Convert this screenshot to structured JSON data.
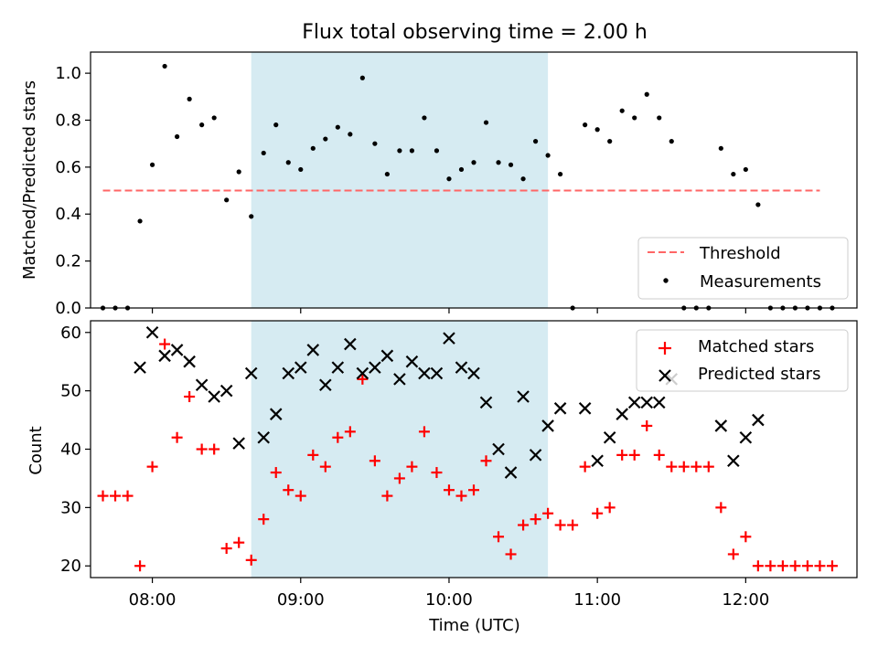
{
  "chart_data": [
    {
      "type": "scatter",
      "title": "Flux total observing time = 2.00 h",
      "ylabel": "Matched/Predicted stars",
      "xlabel": "",
      "xlim": [
        "07:35",
        "12:45"
      ],
      "ylim": [
        0,
        1.09
      ],
      "yticks": [
        0.0,
        0.2,
        0.4,
        0.6,
        0.8,
        1.0
      ],
      "ytick_labels": [
        "0.0",
        "0.2",
        "0.4",
        "0.6",
        "0.8",
        "1.0"
      ],
      "x_tick_labels_shown": false,
      "shaded_interval": {
        "start": "08:40",
        "end": "10:40",
        "color": "#add8e6"
      },
      "threshold": {
        "name": "Threshold",
        "value": 0.5,
        "x_start": "07:40",
        "x_end": "12:30",
        "color": "#ff6666",
        "style": "dashed"
      },
      "series": [
        {
          "name": "Measurements",
          "color": "#000000",
          "marker": "dot",
          "points": [
            [
              "07:40",
              0.0
            ],
            [
              "07:45",
              0.0
            ],
            [
              "07:50",
              0.0
            ],
            [
              "07:55",
              0.37
            ],
            [
              "08:00",
              0.61
            ],
            [
              "08:05",
              1.03
            ],
            [
              "08:10",
              0.73
            ],
            [
              "08:15",
              0.89
            ],
            [
              "08:20",
              0.78
            ],
            [
              "08:25",
              0.81
            ],
            [
              "08:30",
              0.46
            ],
            [
              "08:35",
              0.58
            ],
            [
              "08:40",
              0.39
            ],
            [
              "08:45",
              0.66
            ],
            [
              "08:50",
              0.78
            ],
            [
              "08:55",
              0.62
            ],
            [
              "09:00",
              0.59
            ],
            [
              "09:05",
              0.68
            ],
            [
              "09:10",
              0.72
            ],
            [
              "09:15",
              0.77
            ],
            [
              "09:20",
              0.74
            ],
            [
              "09:25",
              0.98
            ],
            [
              "09:30",
              0.7
            ],
            [
              "09:35",
              0.57
            ],
            [
              "09:40",
              0.67
            ],
            [
              "09:45",
              0.67
            ],
            [
              "09:50",
              0.81
            ],
            [
              "09:55",
              0.67
            ],
            [
              "10:00",
              0.55
            ],
            [
              "10:05",
              0.59
            ],
            [
              "10:10",
              0.62
            ],
            [
              "10:15",
              0.79
            ],
            [
              "10:20",
              0.62
            ],
            [
              "10:25",
              0.61
            ],
            [
              "10:30",
              0.55
            ],
            [
              "10:35",
              0.71
            ],
            [
              "10:40",
              0.65
            ],
            [
              "10:45",
              0.57
            ],
            [
              "10:50",
              0.0
            ],
            [
              "10:55",
              0.78
            ],
            [
              "11:00",
              0.76
            ],
            [
              "11:05",
              0.71
            ],
            [
              "11:10",
              0.84
            ],
            [
              "11:15",
              0.81
            ],
            [
              "11:20",
              0.91
            ],
            [
              "11:25",
              0.81
            ],
            [
              "11:30",
              0.71
            ],
            [
              "11:35",
              0.0
            ],
            [
              "11:40",
              0.0
            ],
            [
              "11:45",
              0.0
            ],
            [
              "11:50",
              0.68
            ],
            [
              "11:55",
              0.57
            ],
            [
              "12:00",
              0.59
            ],
            [
              "12:05",
              0.44
            ],
            [
              "12:10",
              0.0
            ],
            [
              "12:15",
              0.0
            ],
            [
              "12:20",
              0.0
            ],
            [
              "12:25",
              0.0
            ],
            [
              "12:30",
              0.0
            ],
            [
              "12:35",
              0.0
            ]
          ]
        }
      ],
      "legend": {
        "placement": "lower-right",
        "entries": [
          "Threshold",
          "Measurements"
        ]
      },
      "grid": false
    },
    {
      "type": "scatter",
      "title": "",
      "ylabel": "Count",
      "xlabel": "Time (UTC)",
      "xlim": [
        "07:35",
        "12:45"
      ],
      "ylim": [
        18,
        62
      ],
      "yticks": [
        20,
        30,
        40,
        50,
        60
      ],
      "ytick_labels": [
        "20",
        "30",
        "40",
        "50",
        "60"
      ],
      "xticks": [
        "08:00",
        "09:00",
        "10:00",
        "11:00",
        "12:00"
      ],
      "xtick_labels": [
        "08:00",
        "09:00",
        "10:00",
        "11:00",
        "12:00"
      ],
      "shaded_interval": {
        "start": "08:40",
        "end": "10:40",
        "color": "#add8e6"
      },
      "series": [
        {
          "name": "Matched stars",
          "color": "#ff0000",
          "marker": "plus",
          "points": [
            [
              "07:40",
              32
            ],
            [
              "07:45",
              32
            ],
            [
              "07:50",
              32
            ],
            [
              "07:55",
              20
            ],
            [
              "08:00",
              37
            ],
            [
              "08:05",
              58
            ],
            [
              "08:10",
              42
            ],
            [
              "08:15",
              49
            ],
            [
              "08:20",
              40
            ],
            [
              "08:25",
              40
            ],
            [
              "08:30",
              23
            ],
            [
              "08:35",
              24
            ],
            [
              "08:40",
              21
            ],
            [
              "08:45",
              28
            ],
            [
              "08:50",
              36
            ],
            [
              "08:55",
              33
            ],
            [
              "09:00",
              32
            ],
            [
              "09:05",
              39
            ],
            [
              "09:10",
              37
            ],
            [
              "09:15",
              42
            ],
            [
              "09:20",
              43
            ],
            [
              "09:25",
              52
            ],
            [
              "09:30",
              38
            ],
            [
              "09:35",
              32
            ],
            [
              "09:40",
              35
            ],
            [
              "09:45",
              37
            ],
            [
              "09:50",
              43
            ],
            [
              "09:55",
              36
            ],
            [
              "10:00",
              33
            ],
            [
              "10:05",
              32
            ],
            [
              "10:10",
              33
            ],
            [
              "10:15",
              38
            ],
            [
              "10:20",
              25
            ],
            [
              "10:25",
              22
            ],
            [
              "10:30",
              27
            ],
            [
              "10:35",
              28
            ],
            [
              "10:40",
              29
            ],
            [
              "10:45",
              27
            ],
            [
              "10:50",
              27
            ],
            [
              "10:55",
              37
            ],
            [
              "11:00",
              29
            ],
            [
              "11:05",
              30
            ],
            [
              "11:10",
              39
            ],
            [
              "11:15",
              39
            ],
            [
              "11:20",
              44
            ],
            [
              "11:25",
              39
            ],
            [
              "11:30",
              37
            ],
            [
              "11:35",
              37
            ],
            [
              "11:40",
              37
            ],
            [
              "11:45",
              37
            ],
            [
              "11:50",
              30
            ],
            [
              "11:55",
              22
            ],
            [
              "12:00",
              25
            ],
            [
              "12:05",
              20
            ],
            [
              "12:10",
              20
            ],
            [
              "12:15",
              20
            ],
            [
              "12:20",
              20
            ],
            [
              "12:25",
              20
            ],
            [
              "12:30",
              20
            ],
            [
              "12:35",
              20
            ]
          ]
        },
        {
          "name": "Predicted stars",
          "color": "#000000",
          "marker": "x",
          "points": [
            [
              "07:55",
              54
            ],
            [
              "08:00",
              60
            ],
            [
              "08:05",
              56
            ],
            [
              "08:10",
              57
            ],
            [
              "08:15",
              55
            ],
            [
              "08:20",
              51
            ],
            [
              "08:25",
              49
            ],
            [
              "08:30",
              50
            ],
            [
              "08:35",
              41
            ],
            [
              "08:40",
              53
            ],
            [
              "08:45",
              42
            ],
            [
              "08:50",
              46
            ],
            [
              "08:55",
              53
            ],
            [
              "09:00",
              54
            ],
            [
              "09:05",
              57
            ],
            [
              "09:10",
              51
            ],
            [
              "09:15",
              54
            ],
            [
              "09:20",
              58
            ],
            [
              "09:25",
              53
            ],
            [
              "09:30",
              54
            ],
            [
              "09:35",
              56
            ],
            [
              "09:40",
              52
            ],
            [
              "09:45",
              55
            ],
            [
              "09:50",
              53
            ],
            [
              "09:55",
              53
            ],
            [
              "10:00",
              59
            ],
            [
              "10:05",
              54
            ],
            [
              "10:10",
              53
            ],
            [
              "10:15",
              48
            ],
            [
              "10:20",
              40
            ],
            [
              "10:25",
              36
            ],
            [
              "10:30",
              49
            ],
            [
              "10:35",
              39
            ],
            [
              "10:40",
              44
            ],
            [
              "10:45",
              47
            ],
            [
              "10:55",
              47
            ],
            [
              "11:00",
              38
            ],
            [
              "11:05",
              42
            ],
            [
              "11:10",
              46
            ],
            [
              "11:15",
              48
            ],
            [
              "11:20",
              48
            ],
            [
              "11:25",
              48
            ],
            [
              "11:30",
              52
            ],
            [
              "11:50",
              44
            ],
            [
              "11:55",
              38
            ],
            [
              "12:00",
              42
            ],
            [
              "12:05",
              45
            ]
          ]
        }
      ],
      "legend": {
        "placement": "upper-right",
        "entries": [
          "Matched stars",
          "Predicted stars"
        ]
      },
      "grid": false
    }
  ]
}
